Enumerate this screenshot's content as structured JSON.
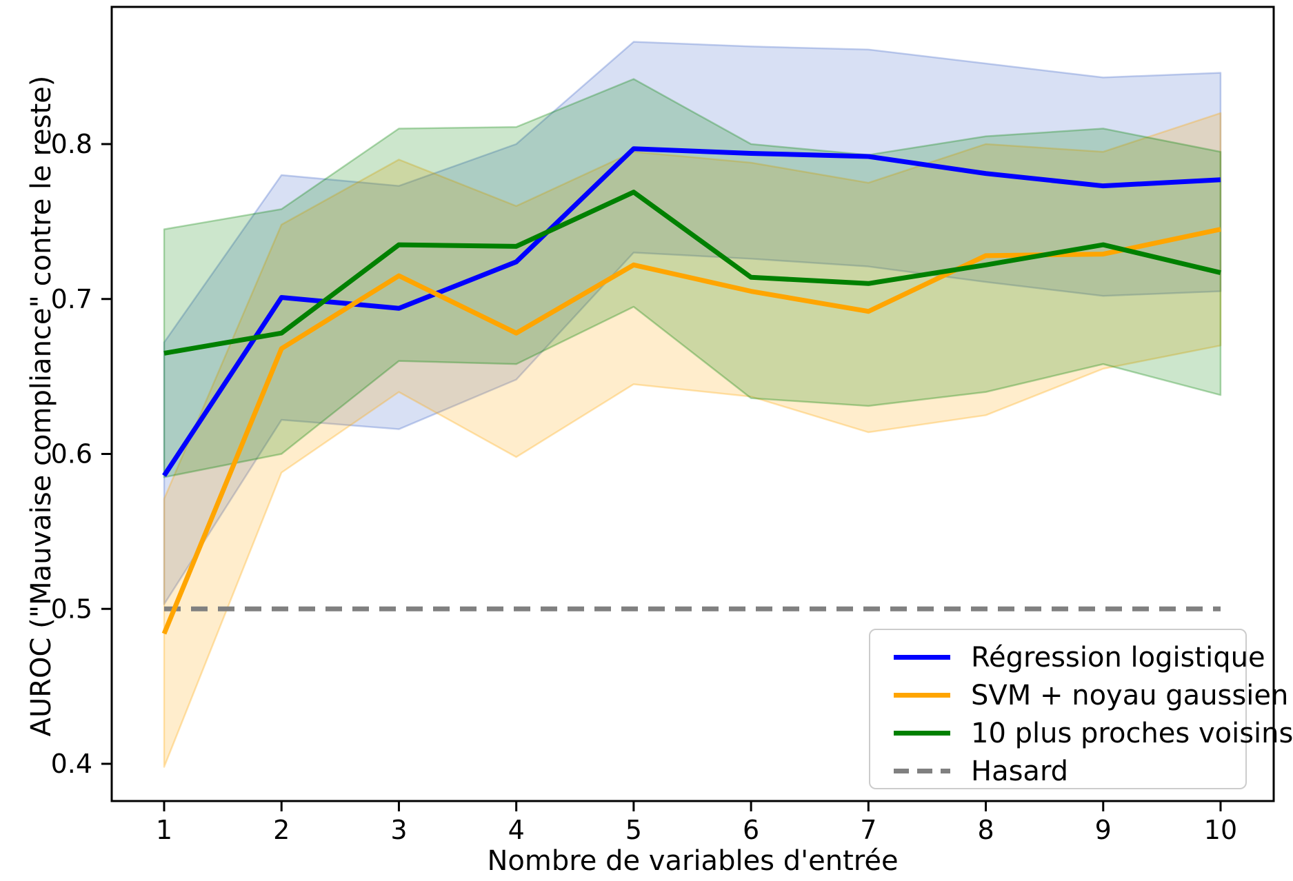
{
  "chart_data": {
    "type": "line",
    "title": "",
    "xlabel": "Nombre de variables d'entrée",
    "ylabel": "AUROC (\"Mauvaise compliance\" contre le reste)",
    "x": [
      1,
      2,
      3,
      4,
      5,
      6,
      7,
      8,
      9,
      10
    ],
    "xticks": [
      1,
      2,
      3,
      4,
      5,
      6,
      7,
      8,
      9,
      10
    ],
    "yticks": [
      0.4,
      0.5,
      0.6,
      0.7,
      0.8
    ],
    "xlim": [
      0.55,
      10.45
    ],
    "ylim": [
      0.376,
      0.889
    ],
    "grid": false,
    "legend_position": "lower right",
    "series": [
      {
        "name": "Régression logistique",
        "color": "#0000ff",
        "band_color": "#3c64c8",
        "dashed": false,
        "values": [
          0.586,
          0.701,
          0.694,
          0.724,
          0.797,
          0.794,
          0.792,
          0.781,
          0.773,
          0.777
        ],
        "band_lower": [
          0.503,
          0.622,
          0.616,
          0.648,
          0.73,
          0.726,
          0.721,
          0.711,
          0.702,
          0.705
        ],
        "band_upper": [
          0.672,
          0.78,
          0.773,
          0.8,
          0.866,
          0.863,
          0.861,
          0.852,
          0.843,
          0.846
        ]
      },
      {
        "name": "SVM + noyau gaussien",
        "color": "#ffa500",
        "band_color": "#ffa500",
        "dashed": false,
        "values": [
          0.484,
          0.668,
          0.715,
          0.678,
          0.722,
          0.705,
          0.692,
          0.728,
          0.729,
          0.745
        ],
        "band_lower": [
          0.398,
          0.588,
          0.64,
          0.598,
          0.645,
          0.637,
          0.614,
          0.625,
          0.655,
          0.67
        ],
        "band_upper": [
          0.571,
          0.748,
          0.79,
          0.76,
          0.795,
          0.788,
          0.775,
          0.8,
          0.795,
          0.82
        ]
      },
      {
        "name": "10 plus proches voisins",
        "color": "#008000",
        "band_color": "#008000",
        "dashed": false,
        "values": [
          0.665,
          0.678,
          0.735,
          0.734,
          0.769,
          0.714,
          0.71,
          0.722,
          0.735,
          0.717
        ],
        "band_lower": [
          0.585,
          0.6,
          0.66,
          0.658,
          0.695,
          0.636,
          0.631,
          0.64,
          0.658,
          0.638
        ],
        "band_upper": [
          0.745,
          0.758,
          0.81,
          0.811,
          0.842,
          0.8,
          0.793,
          0.805,
          0.81,
          0.795
        ]
      },
      {
        "name": "Hasard",
        "color": "#808080",
        "dashed": true,
        "values": [
          0.5,
          0.5,
          0.5,
          0.5,
          0.5,
          0.5,
          0.5,
          0.5,
          0.5,
          0.5
        ]
      }
    ]
  }
}
